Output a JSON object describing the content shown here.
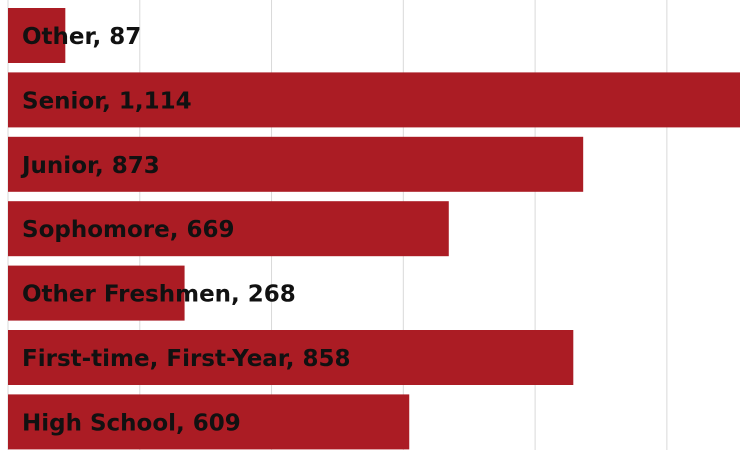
{
  "chart_data": {
    "type": "bar",
    "orientation": "horizontal",
    "values": [
      87,
      1114,
      873,
      669,
      268,
      858,
      609
    ],
    "value_labels": [
      "Other, 87",
      "Senior, 1,114",
      "Junior, 873",
      "Sophomore, 669",
      "Other Freshmen, 268",
      "First-time, First-Year, 858",
      "High School, 609"
    ],
    "color": "#ab1c24",
    "xlim": [
      0,
      1111
    ],
    "xticks": [
      0,
      200,
      400,
      600,
      800,
      1000
    ],
    "grid": true
  }
}
